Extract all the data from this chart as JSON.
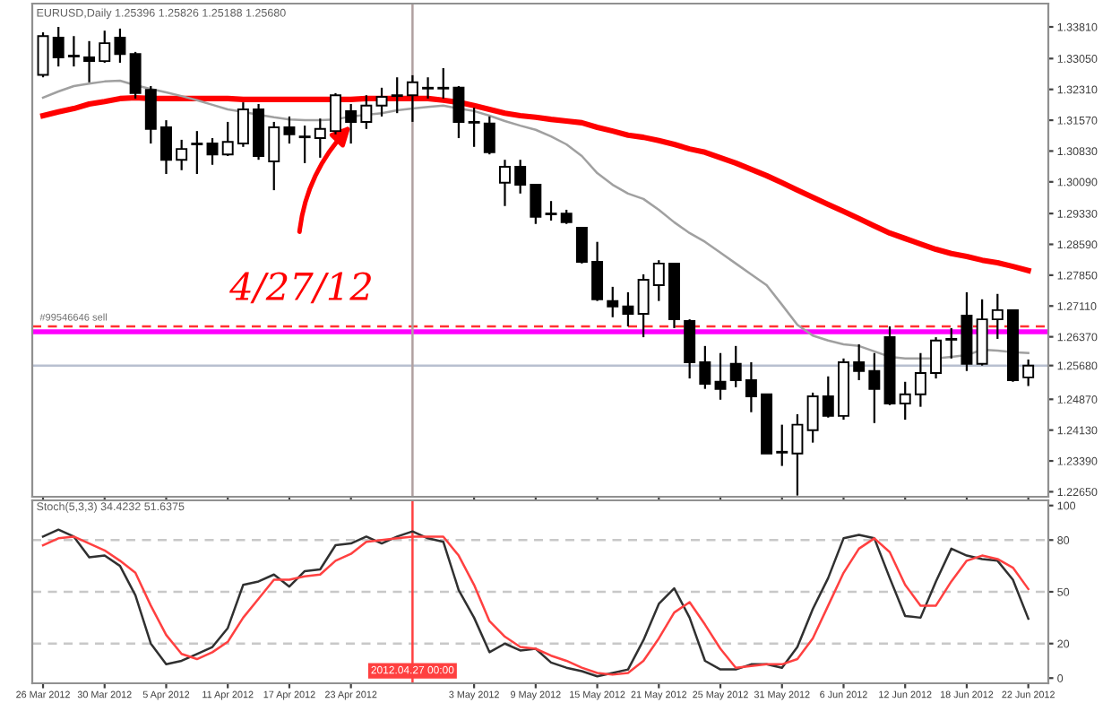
{
  "chart_data": [
    {
      "type": "candlestick",
      "title": "EURUSD,Daily 1.25396 1.25826 1.25188 1.25680",
      "categories": [
        "26 Mar 2012",
        null,
        null,
        null,
        "30 Mar 2012",
        null,
        null,
        null,
        "5 Apr 2012",
        null,
        null,
        null,
        "11 Apr 2012",
        null,
        null,
        null,
        "17 Apr 2012",
        null,
        null,
        null,
        "23 Apr 2012",
        null,
        null,
        null,
        null,
        null,
        null,
        null,
        "3 May 2012",
        null,
        null,
        null,
        "9 May 2012",
        null,
        null,
        null,
        "15 May 2012",
        null,
        null,
        null,
        "21 May 2012",
        null,
        null,
        null,
        "25 May 2012",
        null,
        null,
        null,
        "31 May 2012",
        null,
        null,
        null,
        "6 Jun 2012",
        null,
        null,
        null,
        "12 Jun 2012",
        null,
        null,
        null,
        "18 Jun 2012",
        null,
        null,
        null,
        "22 Jun 2012"
      ],
      "ohlc": [
        [
          1.3266,
          1.3368,
          1.326,
          1.3359
        ],
        [
          1.3355,
          1.3381,
          1.3286,
          1.3308
        ],
        [
          1.3312,
          1.3359,
          1.3286,
          1.331
        ],
        [
          1.3308,
          1.3347,
          1.3248,
          1.3299
        ],
        [
          1.3299,
          1.3372,
          1.3295,
          1.3342
        ],
        [
          1.3355,
          1.3377,
          1.3295,
          1.3316
        ],
        [
          1.3316,
          1.3321,
          1.3209,
          1.3222
        ],
        [
          1.323,
          1.3239,
          1.3101,
          1.3136
        ],
        [
          1.314,
          1.3157,
          1.3028,
          1.3062
        ],
        [
          1.3062,
          1.311,
          1.3037,
          1.3088
        ],
        [
          1.3101,
          1.3131,
          1.3028,
          1.3099
        ],
        [
          1.3101,
          1.3114,
          1.305,
          1.3075
        ],
        [
          1.3075,
          1.3153,
          1.3071,
          1.3105
        ],
        [
          1.3101,
          1.32,
          1.3093,
          1.3183
        ],
        [
          1.3183,
          1.3196,
          1.3062,
          1.3071
        ],
        [
          1.3058,
          1.3153,
          1.2989,
          1.314
        ],
        [
          1.314,
          1.3166,
          1.3101,
          1.3123
        ],
        [
          1.3118,
          1.3144,
          1.3054,
          1.3116
        ],
        [
          1.3114,
          1.3161,
          1.3067,
          1.3136
        ],
        [
          1.3131,
          1.3222,
          1.3123,
          1.3217
        ],
        [
          1.3179,
          1.3196,
          1.3101,
          1.3153
        ],
        [
          1.3153,
          1.3217,
          1.3136,
          1.3192
        ],
        [
          1.3192,
          1.3235,
          1.3166,
          1.3213
        ],
        [
          1.3217,
          1.326,
          1.3174,
          1.3215
        ],
        [
          1.3217,
          1.3265,
          1.3153,
          1.3248
        ],
        [
          1.3235,
          1.326,
          1.3209,
          1.3233
        ],
        [
          1.3235,
          1.3282,
          1.3209,
          1.3233
        ],
        [
          1.3235,
          1.3239,
          1.3114,
          1.3153
        ],
        [
          1.3153,
          1.3187,
          1.3093,
          1.3151
        ],
        [
          1.3149,
          1.3166,
          1.3075,
          1.308
        ],
        [
          1.3007,
          1.3062,
          1.2951,
          1.3045
        ],
        [
          1.3045,
          1.3062,
          1.2981,
          1.3002
        ],
        [
          1.3002,
          1.3002,
          1.2908,
          1.2925
        ],
        [
          1.2933,
          1.2963,
          1.2916,
          1.2931
        ],
        [
          1.2933,
          1.2942,
          1.2908,
          1.2912
        ],
        [
          1.2899,
          1.2899,
          1.2813,
          1.2817
        ],
        [
          1.2817,
          1.2865,
          1.2723,
          1.2727
        ],
        [
          1.2723,
          1.2757,
          1.2684,
          1.271
        ],
        [
          1.271,
          1.2744,
          1.2662,
          1.2692
        ],
        [
          1.2692,
          1.2787,
          1.2636,
          1.2774
        ],
        [
          1.2761,
          1.2821,
          1.2723,
          1.2813
        ],
        [
          1.2813,
          1.2813,
          1.2658,
          1.2679
        ],
        [
          1.2675,
          1.2679,
          1.2537,
          1.2576
        ],
        [
          1.2576,
          1.2615,
          1.2512,
          1.2524
        ],
        [
          1.2529,
          1.2598,
          1.2486,
          1.2512
        ],
        [
          1.2572,
          1.2615,
          1.2516,
          1.2533
        ],
        [
          1.2533,
          1.2576,
          1.2456,
          1.2494
        ],
        [
          1.2499,
          1.2499,
          1.2357,
          1.2357
        ],
        [
          1.2361,
          1.2426,
          1.2327,
          1.2359
        ],
        [
          1.2357,
          1.2451,
          1.2256,
          1.2426
        ],
        [
          1.2413,
          1.2503,
          1.2383,
          1.2494
        ],
        [
          1.2494,
          1.2542,
          1.2443,
          1.2447
        ],
        [
          1.2447,
          1.2585,
          1.2438,
          1.2576
        ],
        [
          1.2576,
          1.2619,
          1.2533,
          1.2555
        ],
        [
          1.2555,
          1.2598,
          1.243,
          1.2512
        ],
        [
          1.2636,
          1.2662,
          1.2473,
          1.2477
        ],
        [
          1.2477,
          1.2529,
          1.2438,
          1.2499
        ],
        [
          1.2499,
          1.2598,
          1.2469,
          1.255
        ],
        [
          1.255,
          1.2636,
          1.2537,
          1.2628
        ],
        [
          1.2632,
          1.2658,
          1.2585,
          1.263
        ],
        [
          1.2688,
          1.2744,
          1.2555,
          1.2572
        ],
        [
          1.2572,
          1.2727,
          1.2568,
          1.2679
        ],
        [
          1.2679,
          1.274,
          1.2632,
          1.2701
        ],
        [
          1.2701,
          1.2701,
          1.2529,
          1.2533
        ],
        [
          1.25396,
          1.25826,
          1.25188,
          1.2568
        ]
      ],
      "series": [
        {
          "type": "line",
          "color": "#ff0000",
          "values": [
            1.3168,
            1.3177,
            1.3185,
            1.3196,
            1.3202,
            1.3209,
            1.3211,
            1.3209,
            1.3209,
            1.3209,
            1.3209,
            1.3209,
            1.3209,
            1.3207,
            1.3207,
            1.3207,
            1.3207,
            1.3207,
            1.3207,
            1.3207,
            1.3207,
            1.3209,
            1.3209,
            1.3209,
            1.3209,
            1.3209,
            1.3205,
            1.32,
            1.3192,
            1.3183,
            1.3174,
            1.3168,
            1.3164,
            1.3159,
            1.3155,
            1.3151,
            1.314,
            1.3131,
            1.3121,
            1.3116,
            1.3108,
            1.3099,
            1.3088,
            1.308,
            1.3067,
            1.3054,
            1.3039,
            1.3024,
            1.3007,
            1.2989,
            1.2972,
            1.2955,
            1.2938,
            1.2921,
            1.2903,
            1.2886,
            1.2873,
            1.286,
            1.2847,
            1.2837,
            1.283,
            1.2821,
            1.2815,
            1.2806,
            1.2796
          ]
        },
        {
          "type": "line",
          "color": "#a0a0a0",
          "values": [
            1.3211,
            1.3226,
            1.3239,
            1.3245,
            1.325,
            1.3252,
            1.3241,
            1.3232,
            1.3224,
            1.3215,
            1.3205,
            1.3194,
            1.3183,
            1.3177,
            1.317,
            1.3164,
            1.3159,
            1.3157,
            1.3157,
            1.3159,
            1.3166,
            1.317,
            1.3174,
            1.3181,
            1.3185,
            1.3189,
            1.3192,
            1.3185,
            1.3179,
            1.3168,
            1.3155,
            1.3144,
            1.3134,
            1.3118,
            1.3099,
            1.3071,
            1.303,
            1.3002,
            1.2981,
            1.2968,
            1.2942,
            1.2912,
            1.2886,
            1.2865,
            1.2839,
            1.2813,
            1.2787,
            1.2761,
            1.2714,
            1.2666,
            1.264,
            1.2628,
            1.2619,
            1.2615,
            1.2602,
            1.2589,
            1.2585,
            1.2585,
            1.2585,
            1.2589,
            1.2593,
            1.2606,
            1.2604,
            1.26,
            1.2598
          ]
        }
      ],
      "ylim": [
        1.2253,
        1.3437
      ],
      "yticks": [
        {
          "value": 1.3381,
          "label": "1.33810"
        },
        {
          "value": 1.3305,
          "label": "1.33050"
        },
        {
          "value": 1.3231,
          "label": "1.32310"
        },
        {
          "value": 1.3157,
          "label": "1.31570"
        },
        {
          "value": 1.3083,
          "label": "1.30830"
        },
        {
          "value": 1.3009,
          "label": "1.30090"
        },
        {
          "value": 1.2933,
          "label": "1.29330"
        },
        {
          "value": 1.2859,
          "label": "1.28590"
        },
        {
          "value": 1.2785,
          "label": "1.27850"
        },
        {
          "value": 1.2711,
          "label": "1.27110"
        },
        {
          "value": 1.2637,
          "label": "1.26370"
        },
        {
          "value": 1.2568,
          "label": "1.25680"
        },
        {
          "value": 1.2487,
          "label": "1.24870"
        },
        {
          "value": 1.2413,
          "label": "1.24130"
        },
        {
          "value": 1.2339,
          "label": "1.23390"
        },
        {
          "value": 1.2265,
          "label": "1.22650"
        }
      ],
      "tick_labels": "y",
      "bands": [
        {
          "axis": "y",
          "from": 1.2643,
          "to": 1.2655,
          "color": "#ff00ff"
        }
      ],
      "ref_lines": [
        {
          "axis": "y",
          "value": 1.2662,
          "label": "#99546646 sell",
          "color": "#ff3030",
          "line_style": "dashed"
        },
        {
          "axis": "y",
          "value": 1.2568,
          "color": "#b8c0d0",
          "line_style": "solid"
        }
      ],
      "annotations": [
        {
          "text": "4/27/12",
          "x": "23 Apr 2012",
          "y": 1.3144
        }
      ]
    },
    {
      "type": "line",
      "title": "Stoch(5,3,3) 34.4232 51.6375",
      "categories": [
        "26 Mar 2012",
        null,
        null,
        null,
        "30 Mar 2012",
        null,
        null,
        null,
        "5 Apr 2012",
        null,
        null,
        null,
        "11 Apr 2012",
        null,
        null,
        null,
        "17 Apr 2012",
        null,
        null,
        null,
        "23 Apr 2012",
        null,
        null,
        null,
        null,
        null,
        null,
        null,
        "3 May 2012",
        null,
        null,
        null,
        "9 May 2012",
        null,
        null,
        null,
        "15 May 2012",
        null,
        null,
        null,
        "21 May 2012",
        null,
        null,
        null,
        "25 May 2012",
        null,
        null,
        null,
        "31 May 2012",
        null,
        null,
        null,
        "6 Jun 2012",
        null,
        null,
        null,
        "12 Jun 2012",
        null,
        null,
        null,
        "18 Jun 2012",
        null,
        null,
        null,
        "22 Jun 2012"
      ],
      "series": [
        {
          "color": "#303030",
          "values": [
            82,
            86,
            82,
            70,
            71,
            65,
            48,
            20,
            8,
            10,
            14,
            18,
            29,
            54,
            56,
            60,
            53,
            62,
            63,
            77,
            78,
            82,
            78,
            82,
            85,
            81,
            79,
            51,
            35,
            15,
            20,
            16,
            17,
            9,
            6,
            4,
            1,
            3,
            5,
            22,
            43,
            52,
            35,
            10,
            5,
            5,
            8,
            8,
            6,
            18,
            40,
            58,
            81,
            83,
            81,
            58,
            36,
            35,
            56,
            75,
            71,
            69,
            68,
            57,
            34.4232
          ]
        },
        {
          "color": "#ff4040",
          "values": [
            77,
            81,
            82,
            78,
            74,
            68,
            61,
            42,
            25,
            14,
            11,
            15,
            21,
            35,
            46,
            57,
            57,
            59,
            60,
            68,
            72,
            79,
            80,
            81,
            82,
            82,
            82,
            71,
            54,
            33,
            24,
            18,
            17,
            13,
            10,
            6,
            3,
            2,
            3,
            10,
            23,
            38,
            44,
            31,
            17,
            6,
            7,
            8,
            8,
            11,
            23,
            42,
            61,
            75,
            81,
            73,
            54,
            42,
            42,
            56,
            68,
            71,
            69,
            64,
            51.6375
          ]
        }
      ],
      "ylim": [
        -3,
        103
      ],
      "yticks": [
        0,
        20,
        50,
        80,
        100
      ],
      "ref_lines": [
        {
          "axis": "y",
          "value": 80,
          "color": "#c8c8c8",
          "line_style": "dashed"
        },
        {
          "axis": "y",
          "value": 50,
          "color": "#c8c8c8",
          "line_style": "dashed"
        },
        {
          "axis": "y",
          "value": 20,
          "color": "#c8c8c8",
          "line_style": "dashed"
        }
      ],
      "annotations": [
        "2012.04.27 00:00"
      ]
    }
  ]
}
